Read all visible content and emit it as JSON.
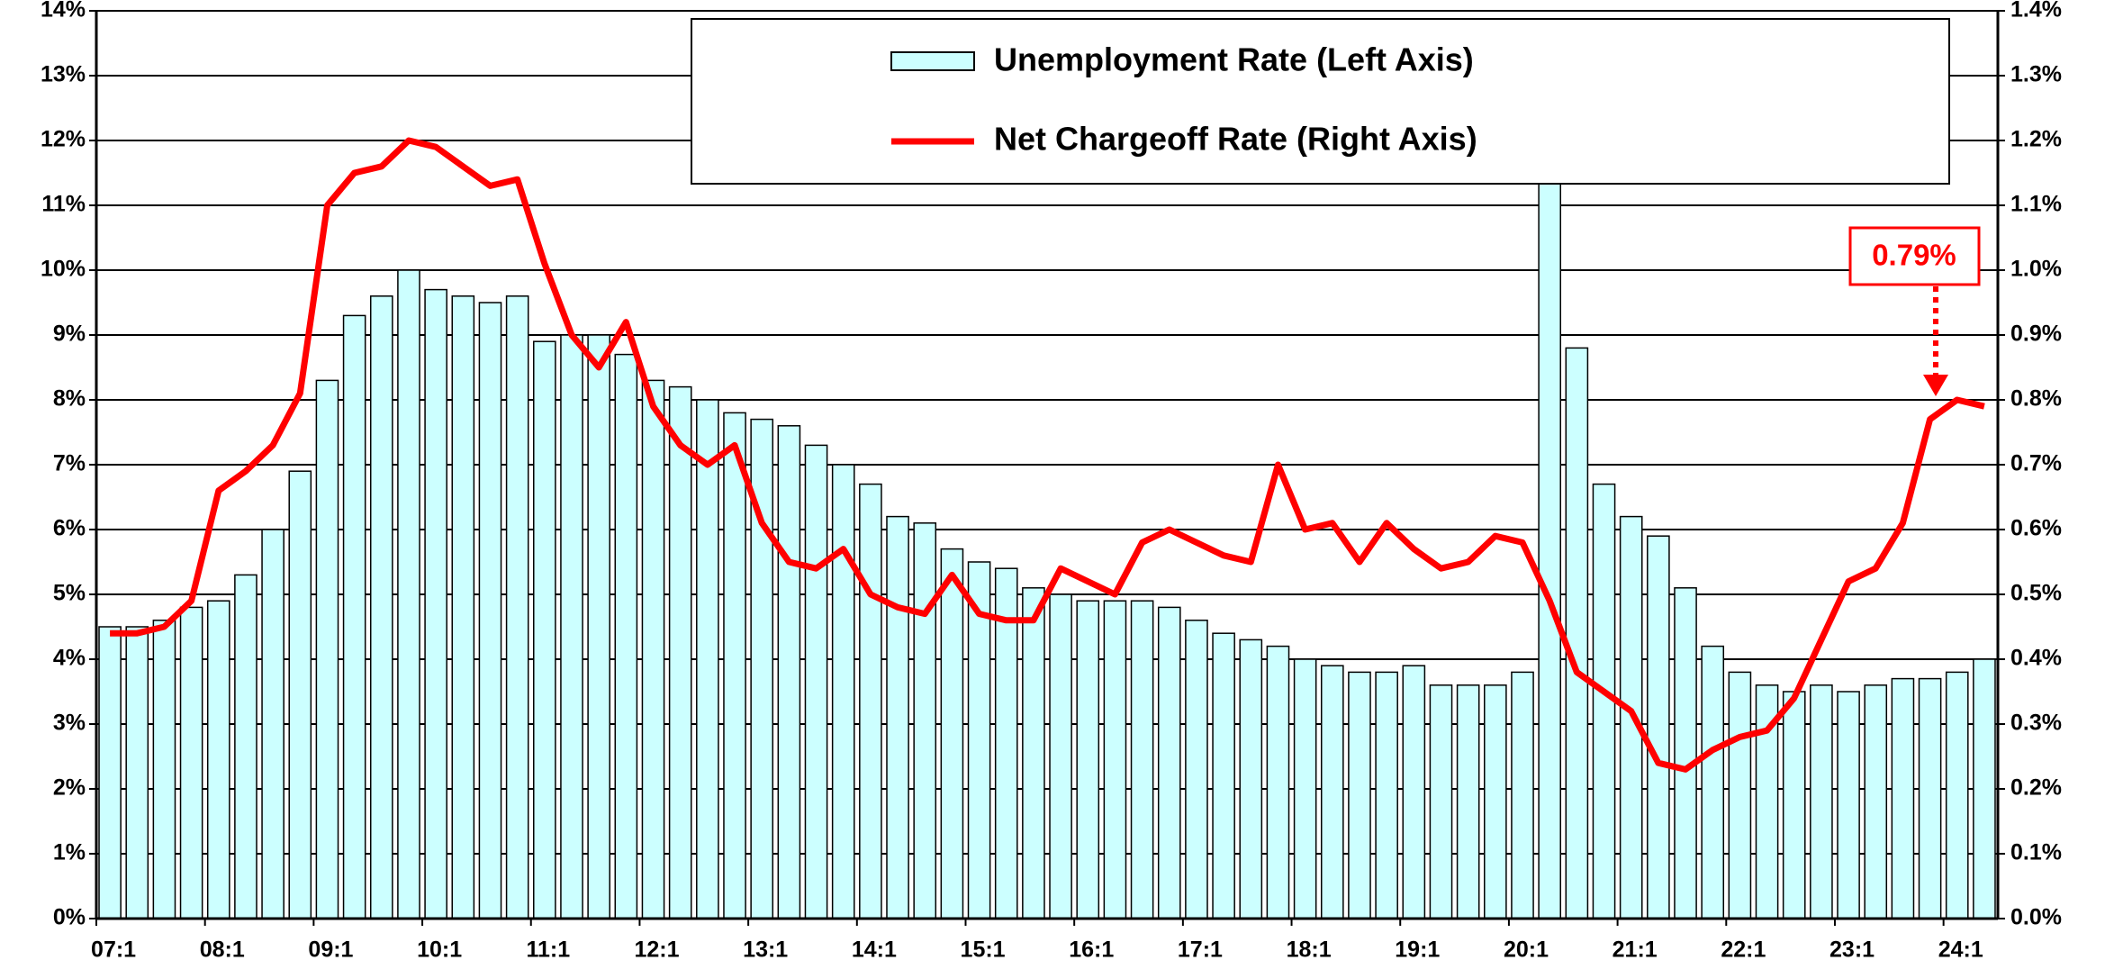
{
  "chart_data": {
    "type": "bar_line",
    "categories": [
      "07:1",
      null,
      null,
      null,
      "08:1",
      null,
      null,
      null,
      "09:1",
      null,
      null,
      null,
      "10:1",
      null,
      null,
      null,
      "11:1",
      null,
      null,
      null,
      "12:1",
      null,
      null,
      null,
      "13:1",
      null,
      null,
      null,
      "14:1",
      null,
      null,
      null,
      "15:1",
      null,
      null,
      null,
      "16:1",
      null,
      null,
      null,
      "17:1",
      null,
      null,
      null,
      "18:1",
      null,
      null,
      null,
      "19:1",
      null,
      null,
      null,
      "20:1",
      null,
      null,
      null,
      "21:1",
      null,
      null,
      null,
      "22:1",
      null,
      null,
      null,
      "23:1",
      null,
      null,
      null,
      "24:1",
      null
    ],
    "series": [
      {
        "name": "Unemployment Rate (Left Axis)",
        "type": "bar",
        "color": "#ccffff",
        "axis": "y",
        "values": [
          4.5,
          4.5,
          4.6,
          4.8,
          4.9,
          5.3,
          6.0,
          6.9,
          8.3,
          9.3,
          9.6,
          10.0,
          9.7,
          9.6,
          9.5,
          9.6,
          8.9,
          9.0,
          9.0,
          8.7,
          8.3,
          8.2,
          8.0,
          7.8,
          7.7,
          7.6,
          7.3,
          7.0,
          6.7,
          6.2,
          6.1,
          5.7,
          5.5,
          5.4,
          5.1,
          5.0,
          4.9,
          4.9,
          4.9,
          4.8,
          4.6,
          4.4,
          4.3,
          4.2,
          4.0,
          3.9,
          3.8,
          3.8,
          3.9,
          3.6,
          3.6,
          3.6,
          3.8,
          13.0,
          8.8,
          6.7,
          6.2,
          5.9,
          5.1,
          4.2,
          3.8,
          3.6,
          3.5,
          3.6,
          3.5,
          3.6,
          3.7,
          3.7,
          3.8,
          4.0
        ]
      },
      {
        "name": "Net Chargeoff Rate (Right Axis)",
        "type": "line",
        "color": "#ff0000",
        "axis": "y2",
        "values": [
          0.44,
          0.44,
          0.45,
          0.49,
          0.66,
          0.69,
          0.73,
          0.81,
          1.1,
          1.15,
          1.16,
          1.2,
          1.19,
          1.16,
          1.13,
          1.14,
          1.01,
          0.9,
          0.85,
          0.92,
          0.79,
          0.73,
          0.7,
          0.73,
          0.61,
          0.55,
          0.54,
          0.57,
          0.5,
          0.48,
          0.47,
          0.53,
          0.47,
          0.46,
          0.46,
          0.54,
          0.52,
          0.5,
          0.58,
          0.6,
          0.58,
          0.56,
          0.55,
          0.7,
          0.6,
          0.61,
          0.55,
          0.61,
          0.57,
          0.54,
          0.55,
          0.59,
          0.58,
          0.49,
          0.38,
          0.35,
          0.32,
          0.24,
          0.23,
          0.26,
          0.28,
          0.29,
          0.34,
          0.43,
          0.52,
          0.54,
          0.61,
          0.77,
          0.8,
          0.79
        ]
      }
    ],
    "ylim": [
      0,
      14
    ],
    "yticks": [
      {
        "value": 0,
        "label": "0%"
      },
      {
        "value": 1,
        "label": "1%"
      },
      {
        "value": 2,
        "label": "2%"
      },
      {
        "value": 3,
        "label": "3%"
      },
      {
        "value": 4,
        "label": "4%"
      },
      {
        "value": 5,
        "label": "5%"
      },
      {
        "value": 6,
        "label": "6%"
      },
      {
        "value": 7,
        "label": "7%"
      },
      {
        "value": 8,
        "label": "8%"
      },
      {
        "value": 9,
        "label": "9%"
      },
      {
        "value": 10,
        "label": "10%"
      },
      {
        "value": 11,
        "label": "11%"
      },
      {
        "value": 12,
        "label": "12%"
      },
      {
        "value": 13,
        "label": "13%"
      },
      {
        "value": 14,
        "label": "14%"
      }
    ],
    "y2lim": [
      0,
      1.4
    ],
    "y2ticks": [
      {
        "value": 0,
        "label": "0.0%"
      },
      {
        "value": 0.1,
        "label": "0.1%"
      },
      {
        "value": 0.2,
        "label": "0.2%"
      },
      {
        "value": 0.3,
        "label": "0.3%"
      },
      {
        "value": 0.4,
        "label": "0.4%"
      },
      {
        "value": 0.5,
        "label": "0.5%"
      },
      {
        "value": 0.6,
        "label": "0.6%"
      },
      {
        "value": 0.7,
        "label": "0.7%"
      },
      {
        "value": 0.8,
        "label": "0.8%"
      },
      {
        "value": 0.9,
        "label": "0.9%"
      },
      {
        "value": 1.0,
        "label": "1.0%"
      },
      {
        "value": 1.1,
        "label": "1.1%"
      },
      {
        "value": 1.2,
        "label": "1.2%"
      },
      {
        "value": 1.3,
        "label": "1.3%"
      },
      {
        "value": 1.4,
        "label": "1.4%"
      }
    ],
    "grid": true,
    "annotation": {
      "text": "0.79%",
      "color": "#ff0000"
    }
  }
}
